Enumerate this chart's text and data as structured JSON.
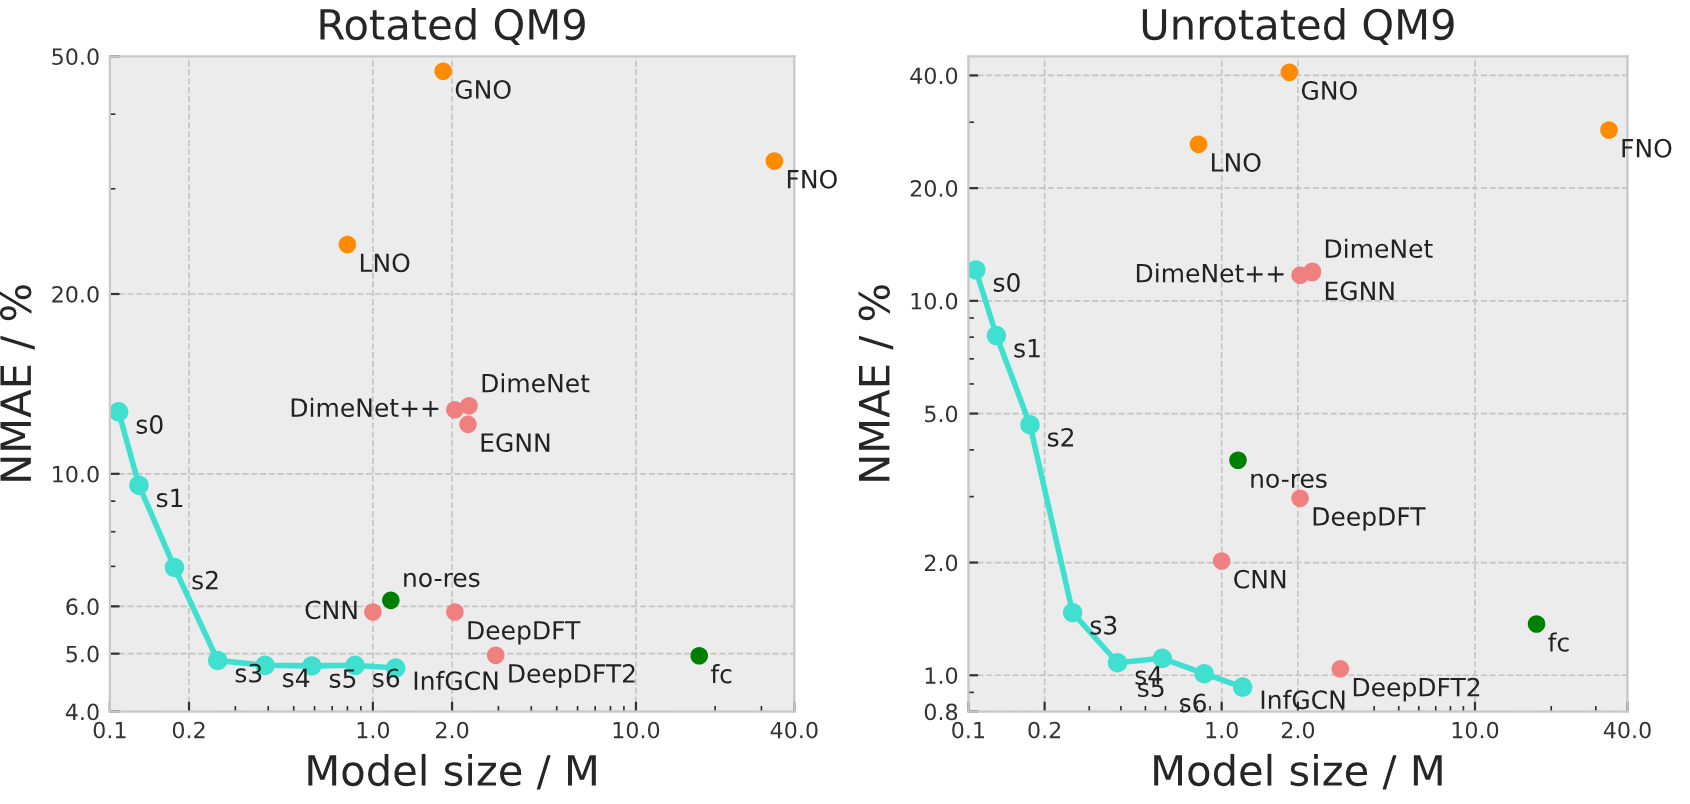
{
  "chart_data": [
    {
      "type": "scatter",
      "title": "Rotated QM9",
      "xlabel": "Model size / M",
      "ylabel": "NMAE / %",
      "log": "xy",
      "grid": true,
      "marker": "circle",
      "xlim": [
        0.1,
        40
      ],
      "ylim": [
        4,
        50
      ],
      "xticks": [
        {
          "value": 0.1,
          "label": "0.1"
        },
        {
          "value": 0.2,
          "label": "0.2"
        },
        {
          "value": 1,
          "label": "1.0"
        },
        {
          "value": 2,
          "label": "2.0"
        },
        {
          "value": 10,
          "label": "10.0"
        },
        {
          "value": 40,
          "label": "40.0"
        }
      ],
      "yticks": [
        {
          "value": 4,
          "label": "4.0"
        },
        {
          "value": 5,
          "label": "5.0"
        },
        {
          "value": 6,
          "label": "6.0"
        },
        {
          "value": 10,
          "label": "10.0"
        },
        {
          "value": 20,
          "label": "20.0"
        },
        {
          "value": 50,
          "label": "50.0"
        }
      ],
      "series": [
        {
          "type": "line",
          "color": "#40e0d0",
          "x": [
            0.108,
            0.129,
            0.176,
            0.257,
            0.389,
            0.586,
            0.856,
            1.22
          ],
          "values": [
            12.7,
            9.57,
            6.97,
            4.87,
            4.78,
            4.77,
            4.78,
            4.73
          ],
          "value_labels": [
            "s0",
            "s1",
            "s2",
            "s3",
            "s4",
            "s5",
            "s6",
            "InfGCN"
          ]
        },
        {
          "name": "GNO",
          "color": "#ff8c00",
          "x": [
            1.85
          ],
          "values": [
            47.2
          ]
        },
        {
          "name": "FNO",
          "color": "#ff8c00",
          "x": [
            33.6
          ],
          "values": [
            33.4
          ]
        },
        {
          "name": "LNO",
          "color": "#ff8c00",
          "x": [
            0.8
          ],
          "values": [
            24.2
          ]
        },
        {
          "name": "DimeNet++",
          "color": "#f08080",
          "x": [
            2.05
          ],
          "values": [
            12.8
          ]
        },
        {
          "name": "DimeNet",
          "color": "#f08080",
          "x": [
            2.32
          ],
          "values": [
            13.0
          ]
        },
        {
          "name": "EGNN",
          "color": "#f08080",
          "x": [
            2.3
          ],
          "values": [
            12.1
          ]
        },
        {
          "name": "no-res",
          "color": "#008000",
          "x": [
            1.17
          ],
          "values": [
            6.14
          ]
        },
        {
          "name": "CNN",
          "color": "#f08080",
          "x": [
            1.0
          ],
          "values": [
            5.87
          ]
        },
        {
          "name": "DeepDFT",
          "color": "#f08080",
          "x": [
            2.05
          ],
          "values": [
            5.87
          ]
        },
        {
          "name": "DeepDFT2",
          "color": "#f08080",
          "x": [
            2.93
          ],
          "values": [
            4.97
          ]
        },
        {
          "name": "fc",
          "color": "#008000",
          "x": [
            17.4
          ],
          "values": [
            4.96
          ]
        }
      ]
    },
    {
      "type": "scatter",
      "title": "Unrotated QM9",
      "xlabel": "Model size / M",
      "ylabel": "NMAE / %",
      "log": "xy",
      "grid": true,
      "marker": "circle",
      "xlim": [
        0.1,
        40
      ],
      "ylim": [
        0.8,
        45
      ],
      "xticks": [
        {
          "value": 0.1,
          "label": "0.1"
        },
        {
          "value": 0.2,
          "label": "0.2"
        },
        {
          "value": 1,
          "label": "1.0"
        },
        {
          "value": 2,
          "label": "2.0"
        },
        {
          "value": 10,
          "label": "10.0"
        },
        {
          "value": 40,
          "label": "40.0"
        }
      ],
      "yticks": [
        {
          "value": 0.8,
          "label": "0.8"
        },
        {
          "value": 1,
          "label": "1.0"
        },
        {
          "value": 2,
          "label": "2.0"
        },
        {
          "value": 5,
          "label": "5.0"
        },
        {
          "value": 10,
          "label": "10.0"
        },
        {
          "value": 20,
          "label": "20.0"
        },
        {
          "value": 40,
          "label": "40.0"
        }
      ],
      "series": [
        {
          "type": "line",
          "color": "#40e0d0",
          "x": [
            0.107,
            0.129,
            0.175,
            0.258,
            0.388,
            0.583,
            0.853,
            1.21
          ],
          "values": [
            12.1,
            8.08,
            4.67,
            1.47,
            1.08,
            1.11,
            1.01,
            0.93
          ],
          "value_labels": [
            "s0",
            "s1",
            "s2",
            "s3",
            "s4",
            "s5",
            "s6",
            "InfGCN"
          ]
        },
        {
          "name": "GNO",
          "color": "#ff8c00",
          "x": [
            1.85
          ],
          "values": [
            40.8
          ]
        },
        {
          "name": "FNO",
          "color": "#ff8c00",
          "x": [
            33.8
          ],
          "values": [
            28.6
          ]
        },
        {
          "name": "LNO",
          "color": "#ff8c00",
          "x": [
            0.81
          ],
          "values": [
            26.2
          ]
        },
        {
          "name": "DimeNet++",
          "color": "#f08080",
          "x": [
            2.04
          ],
          "values": [
            11.7
          ]
        },
        {
          "name": "DimeNet",
          "color": "#f08080",
          "x": [
            2.28
          ],
          "values": [
            12.0
          ]
        },
        {
          "name": "EGNN",
          "color": "#f08080",
          "x": [
            2.28
          ],
          "values": [
            11.9
          ]
        },
        {
          "name": "no-res",
          "color": "#008000",
          "x": [
            1.16
          ],
          "values": [
            3.75
          ]
        },
        {
          "name": "DeepDFT",
          "color": "#f08080",
          "x": [
            2.04
          ],
          "values": [
            2.97
          ]
        },
        {
          "name": "CNN",
          "color": "#f08080",
          "x": [
            1.0
          ],
          "values": [
            2.02
          ]
        },
        {
          "name": "fc",
          "color": "#008000",
          "x": [
            17.5
          ],
          "values": [
            1.37
          ]
        },
        {
          "name": "DeepDFT2",
          "color": "#f08080",
          "x": [
            2.94
          ],
          "values": [
            1.04
          ]
        }
      ]
    }
  ]
}
